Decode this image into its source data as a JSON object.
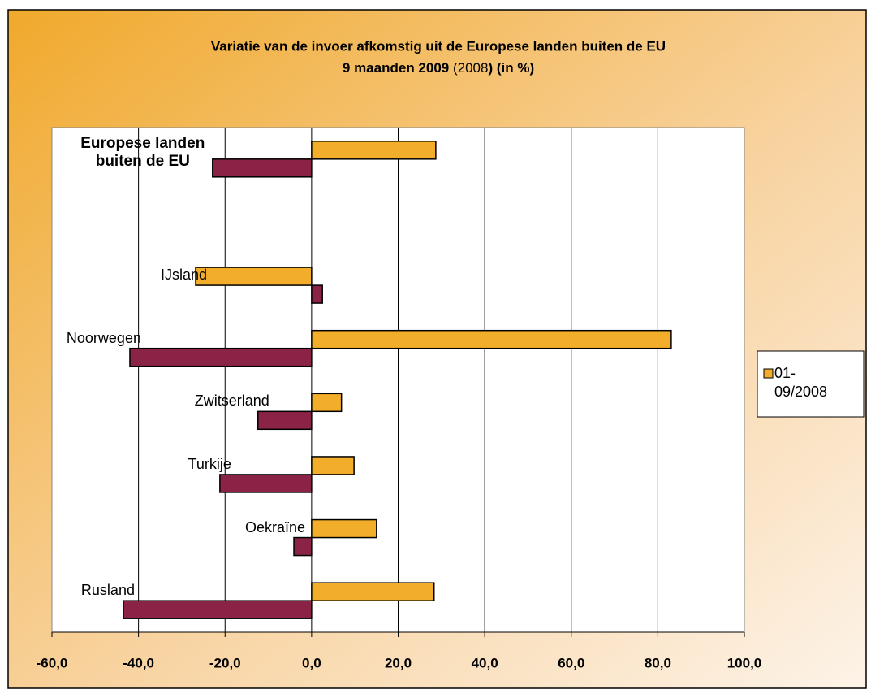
{
  "chart_data": {
    "type": "hbar",
    "title": "Variatie van de invoer afkomstig uit de Europese landen buiten de EU",
    "subtitle_parts": [
      {
        "text": "9 maanden 2009 ",
        "bold": true
      },
      {
        "text": "(2008",
        "bold": false
      },
      {
        "text": ") (in %)",
        "bold": true
      }
    ],
    "categories": [
      "Europese landen buiten de EU",
      null,
      "IJsland",
      "Noorwegen",
      "Zwitserland",
      "Turkije",
      "Oekraïne",
      "Rusland"
    ],
    "bold_categories": [
      0
    ],
    "series": [
      {
        "name": "01-09/2008",
        "color": "#f2ae2a",
        "values": [
          28.7,
          null,
          -26.8,
          83.1,
          6.9,
          9.8,
          15.0,
          28.3
        ]
      },
      {
        "color": "#8b2346",
        "values": [
          -22.9,
          null,
          2.5,
          -42.0,
          -12.4,
          -21.2,
          -4.1,
          -43.5
        ]
      }
    ],
    "xlim": [
      -60,
      100
    ],
    "xticks": [
      {
        "value": -60,
        "label": "-60,0"
      },
      {
        "value": -40,
        "label": "-40,0"
      },
      {
        "value": -20,
        "label": "-20,0"
      },
      {
        "value": 0,
        "label": "0,0"
      },
      {
        "value": 20,
        "label": "20,0"
      },
      {
        "value": 40,
        "label": "40,0"
      },
      {
        "value": 60,
        "label": "60,0"
      },
      {
        "value": 80,
        "label": "80,0"
      },
      {
        "value": 100,
        "label": "100,0"
      }
    ],
    "grid": true,
    "legend": "right"
  }
}
